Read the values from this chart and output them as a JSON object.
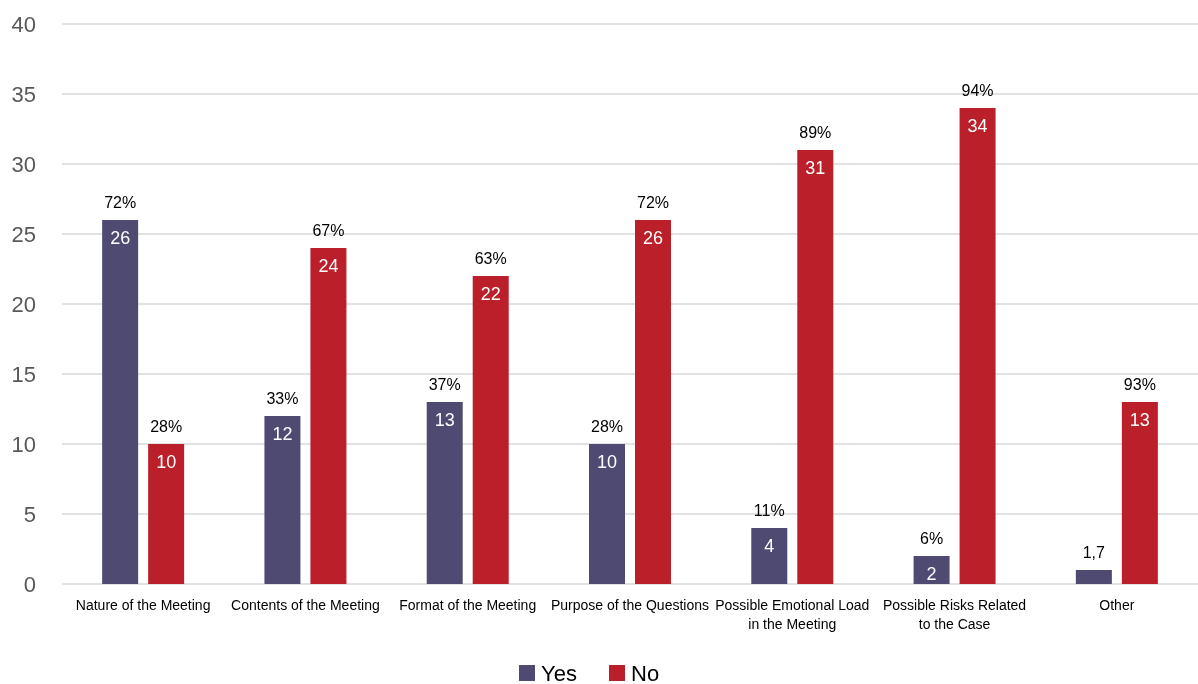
{
  "chart_data": {
    "type": "bar",
    "categories": [
      "Nature of the Meeting",
      "Contents of the Meeting",
      "Format of the Meeting",
      "Purpose of the Questions",
      "Possible Emotional Load in the Meeting",
      "Possible Risks Related to the Case",
      "Other"
    ],
    "series": [
      {
        "name": "Yes",
        "color": "#4f4a72",
        "values": [
          26,
          12,
          13,
          10,
          4,
          2,
          1
        ],
        "value_labels": [
          "26",
          "12",
          "13",
          "10",
          "4",
          "2",
          null
        ]
      },
      {
        "name": "No",
        "color": "#bb1f2a",
        "values": [
          10,
          24,
          22,
          26,
          31,
          34,
          13
        ],
        "value_labels": [
          "10",
          "24",
          "22",
          "26",
          "31",
          "34",
          "13"
        ]
      }
    ],
    "ylim": [
      0,
      40
    ],
    "yticks": [
      0,
      5,
      10,
      15,
      20,
      25,
      30,
      35,
      40
    ],
    "grid": "y",
    "legend": "bottom",
    "annotations": [
      "72%",
      "28%",
      "33%",
      "67%",
      "37%",
      "63%",
      "28%",
      "72%",
      "11%",
      "89%",
      "6%",
      "94%",
      "1,7",
      "93%"
    ]
  }
}
